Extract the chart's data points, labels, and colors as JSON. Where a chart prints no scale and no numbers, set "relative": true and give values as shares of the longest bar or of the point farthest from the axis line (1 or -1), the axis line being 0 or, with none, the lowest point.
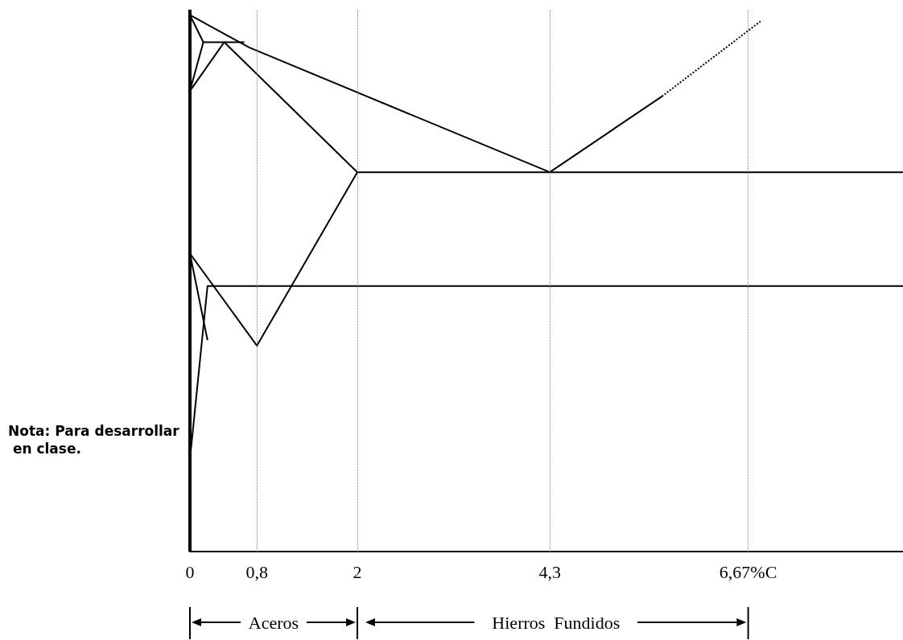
{
  "chart_data": {
    "type": "line",
    "relative": true,
    "marker": "none",
    "xlim": [
      0,
      8.52
    ],
    "xticks": [
      0,
      {
        "value": 0.8,
        "label": "0,8"
      },
      2,
      {
        "value": 4.3,
        "label": "4,3"
      },
      {
        "value": 6.67,
        "label": "6,67%C"
      }
    ],
    "series": [
      {
        "color": "#000000",
        "x": [
          0,
          0
        ],
        "values": [
          0,
          1
        ]
      },
      {
        "color": "#000000",
        "x": [
          0,
          0.71,
          4.3,
          5.64
        ],
        "values": [
          0.99,
          0.93,
          0.7,
          0.84
        ]
      },
      {
        "color": "#000000",
        "x": [
          5.64,
          6.83
        ],
        "values": [
          0.84,
          0.98
        ],
        "line_style": "dotted"
      },
      {
        "color": "#000000",
        "x": [
          0,
          0.16,
          0,
          0.41,
          2
        ],
        "values": [
          0.99,
          0.94,
          0.85,
          0.94,
          0.7
        ]
      },
      {
        "color": "#000000",
        "x": [
          0.16,
          0.65
        ],
        "values": [
          0.94,
          0.94
        ]
      },
      {
        "color": "#000000",
        "x": [
          2,
          8.52
        ],
        "values": [
          0.7,
          0.7
        ]
      },
      {
        "color": "#000000",
        "x": [
          0,
          0.8,
          2
        ],
        "values": [
          0.55,
          0.38,
          0.7
        ]
      },
      {
        "color": "#000000",
        "x": [
          0,
          0.21
        ],
        "values": [
          0.55,
          0.39
        ]
      },
      {
        "color": "#000000",
        "x": [
          0,
          0.21,
          8.52
        ],
        "values": [
          0.17,
          0.49,
          0.49
        ]
      }
    ],
    "ref_lines": [
      {
        "axis": "x",
        "value": 0.8,
        "color": "#808080",
        "line_style": "dotted"
      },
      {
        "axis": "x",
        "value": 2,
        "color": "#808080",
        "line_style": "dotted"
      },
      {
        "axis": "x",
        "value": 4.3,
        "color": "#808080",
        "line_style": "dotted"
      },
      {
        "axis": "x",
        "value": 6.67,
        "color": "#808080",
        "line_style": "dotted"
      }
    ],
    "annotations": [
      "Nota: Para desarrollar en clase.",
      "Aceros",
      "Hierros  Fundidos"
    ]
  }
}
